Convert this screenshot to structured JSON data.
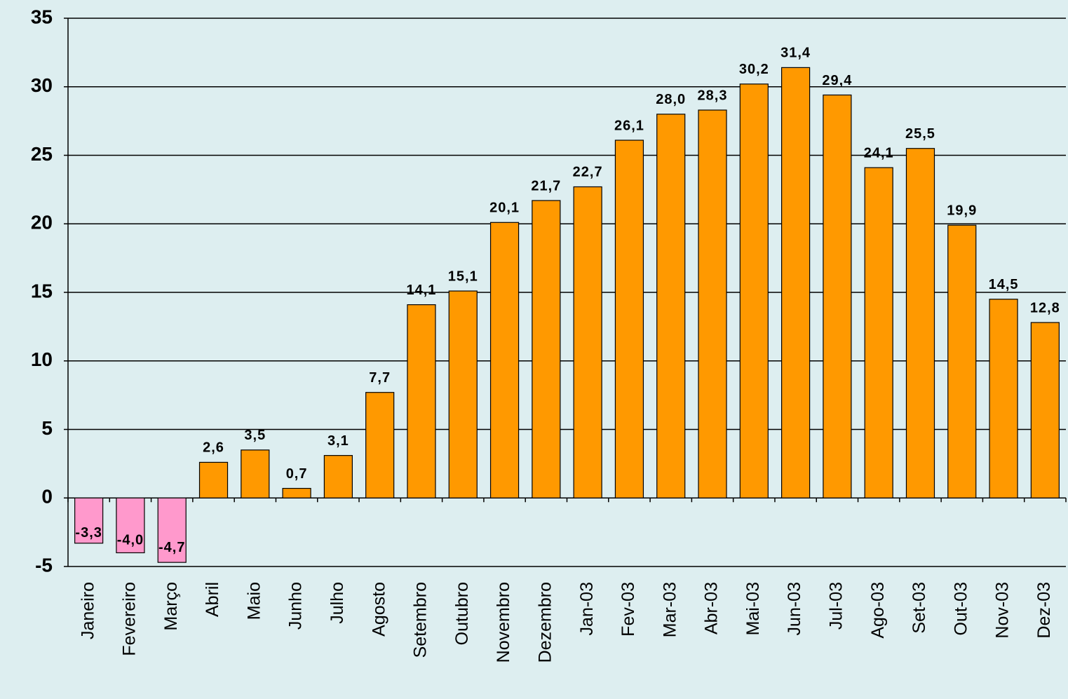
{
  "chart_data": {
    "type": "bar",
    "categories": [
      "Janeiro",
      "Fevereiro",
      "Março",
      "Abril",
      "Maio",
      "Junho",
      "Julho",
      "Agosto",
      "Setembro",
      "Outubro",
      "Novembro",
      "Dezembro",
      "Jan-03",
      "Fev-03",
      "Mar-03",
      "Abr-03",
      "Mai-03",
      "Jun-03",
      "Jul-03",
      "Ago-03",
      "Set-03",
      "Out-03",
      "Nov-03",
      "Dez-03"
    ],
    "values": [
      -3.3,
      -4.0,
      -4.7,
      2.6,
      3.5,
      0.7,
      3.1,
      7.7,
      14.1,
      15.1,
      20.1,
      21.7,
      22.7,
      26.1,
      28.0,
      28.3,
      30.2,
      31.4,
      29.4,
      24.1,
      25.5,
      19.9,
      14.5,
      12.8
    ],
    "value_labels": [
      "-3,3",
      "-4,0",
      "-4,7",
      "2,6",
      "3,5",
      "0,7",
      "3,1",
      "7,7",
      "14,1",
      "15,1",
      "20,1",
      "21,7",
      "22,7",
      "26,1",
      "28,0",
      "28,3",
      "30,2",
      "31,4",
      "29,4",
      "24,1",
      "25,5",
      "19,9",
      "14,5",
      "12,8"
    ],
    "color": "#ff9900",
    "negative_color": "#ff99cc",
    "ylim": [
      -5,
      35
    ],
    "yticks": [
      -5,
      0,
      5,
      10,
      15,
      20,
      25,
      30,
      35
    ],
    "grid": true
  }
}
